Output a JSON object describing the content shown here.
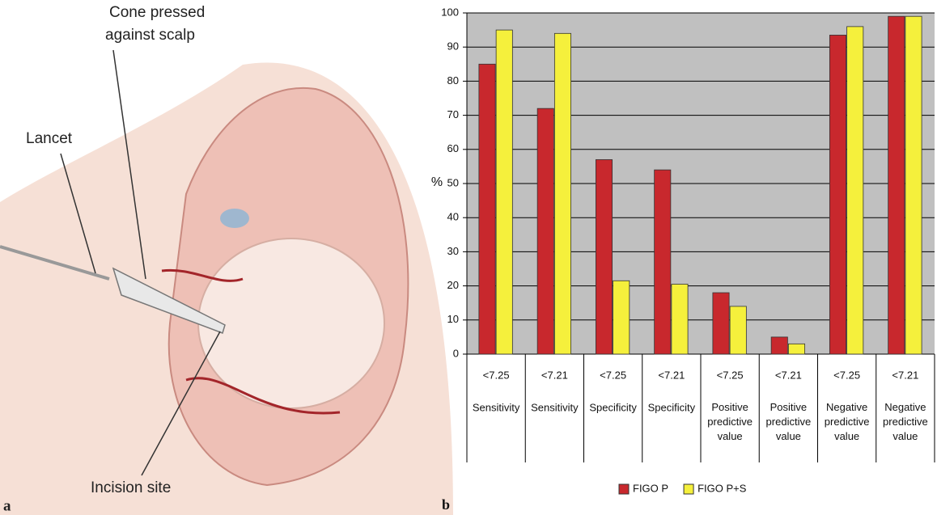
{
  "illustration": {
    "cone_label": [
      "Cone pressed",
      "against scalp"
    ],
    "lancet_label": "Lancet",
    "incision_label": "Incision site",
    "panel_label": "a"
  },
  "chart_data": {
    "type": "bar",
    "panel_label": "b",
    "ylabel": "%",
    "categories": [
      "<7.25",
      "<7.21",
      "<7.25",
      "<7.21",
      "<7.25",
      "<7.21",
      "<7.25",
      "<7.21"
    ],
    "category_groups": [
      "Sensitivity",
      "Sensitivity",
      "Specificity",
      "Specificity",
      "Positive predictive value",
      "Positive predictive value",
      "Negative predictive value",
      "Negative predictive value"
    ],
    "series": [
      {
        "name": "FIGO P",
        "color": "#c8282d",
        "values": [
          85,
          72,
          57,
          54,
          18,
          5,
          93.5,
          99
        ]
      },
      {
        "name": "FIGO P+S",
        "color": "#f5f03c",
        "values": [
          95,
          94,
          21.5,
          20.5,
          14,
          3,
          96,
          99
        ]
      }
    ],
    "ylim": [
      0,
      100
    ],
    "yticks": [
      0,
      10,
      20,
      30,
      40,
      50,
      60,
      70,
      80,
      90,
      100
    ],
    "grid": true,
    "legend": "bottom"
  }
}
